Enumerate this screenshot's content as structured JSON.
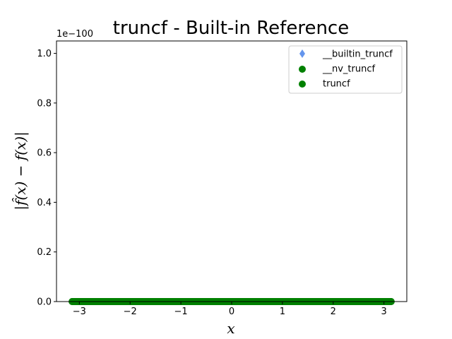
{
  "chart_data": {
    "type": "scatter",
    "title": "truncf - Built-in Reference",
    "xlabel": "x",
    "ylabel": "|f̂(x) − f(x)|",
    "y_offset_label": "1e−100",
    "xlim": [
      -3.45,
      3.45
    ],
    "ylim": [
      0,
      1.05
    ],
    "x_ticks": [
      -3,
      -2,
      -1,
      0,
      1,
      2,
      3
    ],
    "x_tick_labels": [
      "−3",
      "−2",
      "−1",
      "0",
      "1",
      "2",
      "3"
    ],
    "y_ticks": [
      0.0,
      0.2,
      0.4,
      0.6,
      0.8,
      1.0
    ],
    "y_tick_labels": [
      "0.0",
      "0.2",
      "0.4",
      "0.6",
      "0.8",
      "1.0"
    ],
    "x_range": [
      -3.14159,
      3.14159
    ],
    "sample_count": 400,
    "grid": false,
    "legend_position": "top-right",
    "series": [
      {
        "name": "__builtin_truncf",
        "marker": "diamond",
        "color": "#6495ed",
        "y": 0
      },
      {
        "name": "__nv_truncf",
        "marker": "circle",
        "color": "#008000",
        "y": 0
      },
      {
        "name": "truncf",
        "marker": "circle",
        "color": "#008000",
        "y": 0
      }
    ]
  }
}
